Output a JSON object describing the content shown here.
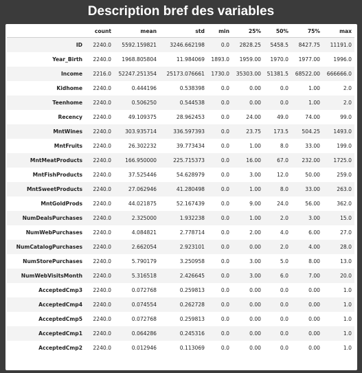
{
  "title": "Description bref des variables",
  "table": {
    "columns": [
      "count",
      "mean",
      "std",
      "min",
      "25%",
      "50%",
      "75%",
      "max"
    ],
    "rows": [
      {
        "name": "ID",
        "values": [
          "2240.0",
          "5592.159821",
          "3246.662198",
          "0.0",
          "2828.25",
          "5458.5",
          "8427.75",
          "11191.0"
        ]
      },
      {
        "name": "Year_Birth",
        "values": [
          "2240.0",
          "1968.805804",
          "11.984069",
          "1893.0",
          "1959.00",
          "1970.0",
          "1977.00",
          "1996.0"
        ]
      },
      {
        "name": "Income",
        "values": [
          "2216.0",
          "52247.251354",
          "25173.076661",
          "1730.0",
          "35303.00",
          "51381.5",
          "68522.00",
          "666666.0"
        ]
      },
      {
        "name": "Kidhome",
        "values": [
          "2240.0",
          "0.444196",
          "0.538398",
          "0.0",
          "0.00",
          "0.0",
          "1.00",
          "2.0"
        ]
      },
      {
        "name": "Teenhome",
        "values": [
          "2240.0",
          "0.506250",
          "0.544538",
          "0.0",
          "0.00",
          "0.0",
          "1.00",
          "2.0"
        ]
      },
      {
        "name": "Recency",
        "values": [
          "2240.0",
          "49.109375",
          "28.962453",
          "0.0",
          "24.00",
          "49.0",
          "74.00",
          "99.0"
        ]
      },
      {
        "name": "MntWines",
        "values": [
          "2240.0",
          "303.935714",
          "336.597393",
          "0.0",
          "23.75",
          "173.5",
          "504.25",
          "1493.0"
        ]
      },
      {
        "name": "MntFruits",
        "values": [
          "2240.0",
          "26.302232",
          "39.773434",
          "0.0",
          "1.00",
          "8.0",
          "33.00",
          "199.0"
        ]
      },
      {
        "name": "MntMeatProducts",
        "values": [
          "2240.0",
          "166.950000",
          "225.715373",
          "0.0",
          "16.00",
          "67.0",
          "232.00",
          "1725.0"
        ]
      },
      {
        "name": "MntFishProducts",
        "values": [
          "2240.0",
          "37.525446",
          "54.628979",
          "0.0",
          "3.00",
          "12.0",
          "50.00",
          "259.0"
        ]
      },
      {
        "name": "MntSweetProducts",
        "values": [
          "2240.0",
          "27.062946",
          "41.280498",
          "0.0",
          "1.00",
          "8.0",
          "33.00",
          "263.0"
        ]
      },
      {
        "name": "MntGoldProds",
        "values": [
          "2240.0",
          "44.021875",
          "52.167439",
          "0.0",
          "9.00",
          "24.0",
          "56.00",
          "362.0"
        ]
      },
      {
        "name": "NumDealsPurchases",
        "values": [
          "2240.0",
          "2.325000",
          "1.932238",
          "0.0",
          "1.00",
          "2.0",
          "3.00",
          "15.0"
        ]
      },
      {
        "name": "NumWebPurchases",
        "values": [
          "2240.0",
          "4.084821",
          "2.778714",
          "0.0",
          "2.00",
          "4.0",
          "6.00",
          "27.0"
        ]
      },
      {
        "name": "NumCatalogPurchases",
        "values": [
          "2240.0",
          "2.662054",
          "2.923101",
          "0.0",
          "0.00",
          "2.0",
          "4.00",
          "28.0"
        ]
      },
      {
        "name": "NumStorePurchases",
        "values": [
          "2240.0",
          "5.790179",
          "3.250958",
          "0.0",
          "3.00",
          "5.0",
          "8.00",
          "13.0"
        ]
      },
      {
        "name": "NumWebVisitsMonth",
        "values": [
          "2240.0",
          "5.316518",
          "2.426645",
          "0.0",
          "3.00",
          "6.0",
          "7.00",
          "20.0"
        ]
      },
      {
        "name": "AcceptedCmp3",
        "values": [
          "2240.0",
          "0.072768",
          "0.259813",
          "0.0",
          "0.00",
          "0.0",
          "0.00",
          "1.0"
        ]
      },
      {
        "name": "AcceptedCmp4",
        "values": [
          "2240.0",
          "0.074554",
          "0.262728",
          "0.0",
          "0.00",
          "0.0",
          "0.00",
          "1.0"
        ]
      },
      {
        "name": "AcceptedCmp5",
        "values": [
          "2240.0",
          "0.072768",
          "0.259813",
          "0.0",
          "0.00",
          "0.0",
          "0.00",
          "1.0"
        ]
      },
      {
        "name": "AcceptedCmp1",
        "values": [
          "2240.0",
          "0.064286",
          "0.245316",
          "0.0",
          "0.00",
          "0.0",
          "0.00",
          "1.0"
        ]
      },
      {
        "name": "AcceptedCmp2",
        "values": [
          "2240.0",
          "0.012946",
          "0.113069",
          "0.0",
          "0.00",
          "0.0",
          "0.00",
          "1.0"
        ]
      }
    ]
  }
}
